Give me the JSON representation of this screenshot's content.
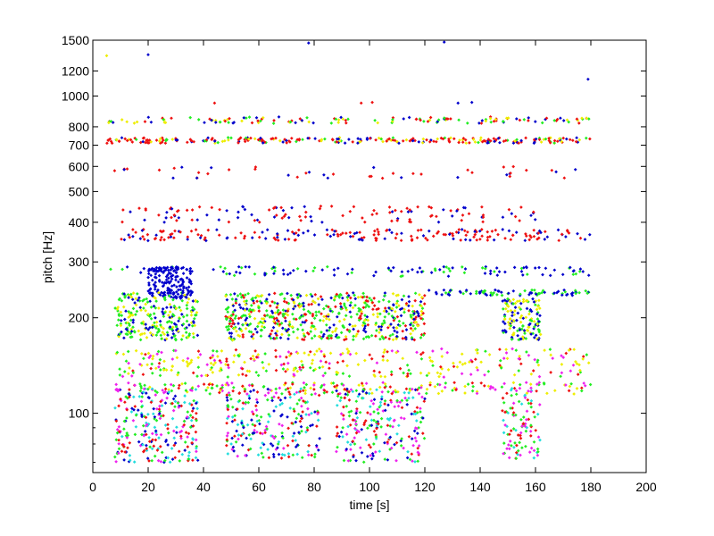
{
  "chart_data": {
    "type": "scatter",
    "title": "",
    "xlabel": "time [s]",
    "ylabel": "pitch [Hz]",
    "xlim": [
      0,
      200
    ],
    "ylim": [
      65,
      1500
    ],
    "yscale": "log",
    "grid": false,
    "legend": "none",
    "x_ticks": [
      0,
      20,
      40,
      60,
      80,
      100,
      120,
      140,
      160,
      180,
      200
    ],
    "y_ticks": [
      100,
      200,
      300,
      400,
      500,
      600,
      700,
      800,
      1000,
      1200,
      1500
    ],
    "x_tick_labels": [
      "0",
      "20",
      "40",
      "60",
      "80",
      "100",
      "120",
      "140",
      "160",
      "180",
      "200"
    ],
    "y_tick_labels": [
      "100",
      "200",
      "300",
      "400",
      "500",
      "600",
      "700",
      "800",
      "1000",
      "1200",
      "1500"
    ],
    "colors": [
      "#0000cc",
      "#ee1111",
      "#22ee22",
      "#eeee00",
      "#ee22ee",
      "#22dddd"
    ],
    "clusters": [
      {
        "x": [
          5,
          180
        ],
        "y": [
          820,
          860
        ],
        "colors": [
          0,
          1,
          2,
          3
        ],
        "n": 140
      },
      {
        "x": [
          5,
          180
        ],
        "y": [
          710,
          740
        ],
        "colors": [
          1,
          1,
          1,
          0,
          2,
          3
        ],
        "n": 260
      },
      {
        "x": [
          5,
          180
        ],
        "y": [
          550,
          600
        ],
        "colors": [
          1,
          1,
          0
        ],
        "n": 45
      },
      {
        "x": [
          10,
          160
        ],
        "y": [
          400,
          450
        ],
        "colors": [
          1,
          1,
          0
        ],
        "n": 120
      },
      {
        "x": [
          10,
          180
        ],
        "y": [
          350,
          380
        ],
        "colors": [
          0,
          1,
          1
        ],
        "n": 200
      },
      {
        "x": [
          5,
          180
        ],
        "y": [
          270,
          290
        ],
        "colors": [
          0,
          0,
          2
        ],
        "n": 120
      },
      {
        "x": [
          20,
          36
        ],
        "y": [
          230,
          290
        ],
        "colors": [
          0
        ],
        "n": 160
      },
      {
        "x": [
          8,
          38
        ],
        "y": [
          170,
          240
        ],
        "colors": [
          0,
          2,
          2,
          3
        ],
        "n": 250
      },
      {
        "x": [
          48,
          120
        ],
        "y": [
          170,
          240
        ],
        "colors": [
          0,
          2,
          2,
          3,
          1
        ],
        "n": 600
      },
      {
        "x": [
          148,
          162
        ],
        "y": [
          170,
          230
        ],
        "colors": [
          0,
          2,
          3
        ],
        "n": 140
      },
      {
        "x": [
          120,
          180
        ],
        "y": [
          235,
          245
        ],
        "colors": [
          0,
          2
        ],
        "n": 80
      },
      {
        "x": [
          8,
          180
        ],
        "y": [
          130,
          160
        ],
        "colors": [
          3,
          3,
          2,
          4,
          1
        ],
        "n": 320
      },
      {
        "x": [
          8,
          180
        ],
        "y": [
          115,
          125
        ],
        "colors": [
          1,
          3,
          4,
          2
        ],
        "n": 200
      },
      {
        "x": [
          8,
          38
        ],
        "y": [
          70,
          120
        ],
        "colors": [
          1,
          4,
          5,
          2,
          0
        ],
        "n": 260
      },
      {
        "x": [
          48,
          82
        ],
        "y": [
          72,
          120
        ],
        "colors": [
          1,
          4,
          5,
          2,
          0
        ],
        "n": 220
      },
      {
        "x": [
          88,
          120
        ],
        "y": [
          70,
          120
        ],
        "colors": [
          1,
          4,
          5,
          2,
          0
        ],
        "n": 220
      },
      {
        "x": [
          148,
          162
        ],
        "y": [
          72,
          120
        ],
        "colors": [
          1,
          4,
          5,
          2
        ],
        "n": 100
      }
    ],
    "outliers": [
      {
        "x": 5,
        "y": 1340,
        "c": 3
      },
      {
        "x": 20,
        "y": 1350,
        "c": 0
      },
      {
        "x": 78,
        "y": 1470,
        "c": 0
      },
      {
        "x": 127,
        "y": 1480,
        "c": 0
      },
      {
        "x": 179,
        "y": 1130,
        "c": 0
      },
      {
        "x": 44,
        "y": 950,
        "c": 1
      },
      {
        "x": 97,
        "y": 950,
        "c": 1
      },
      {
        "x": 101,
        "y": 955,
        "c": 1
      },
      {
        "x": 132,
        "y": 950,
        "c": 0
      },
      {
        "x": 137,
        "y": 955,
        "c": 0
      }
    ]
  }
}
